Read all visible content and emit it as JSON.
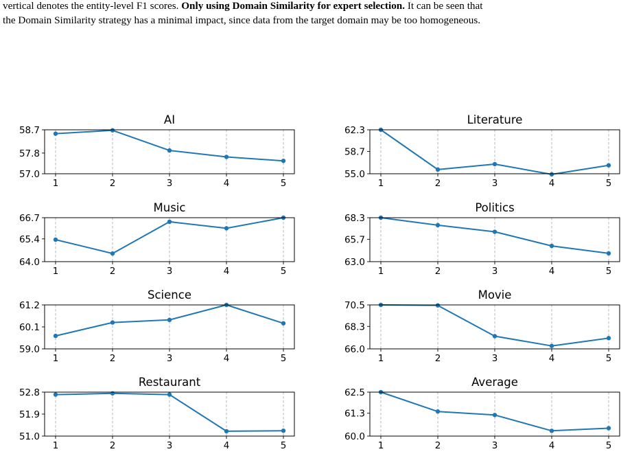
{
  "caption": {
    "line1_start": "vertical denotes the entity-level F1 scores.",
    "line1_bold": "Only using Domain Similarity for expert selection.",
    "line1_end": "It can be seen that",
    "line2": "the Domain Similarity strategy has a minimal impact, since data from the target domain may be too homogeneous."
  },
  "colors": {
    "line": "#1f77b4",
    "grid": "#b0b0b0",
    "axes": "#000000"
  },
  "chart_data": [
    {
      "type": "line",
      "title": "AI",
      "x": [
        1,
        2,
        3,
        4,
        5
      ],
      "values": [
        58.55,
        58.68,
        57.9,
        57.65,
        57.5
      ],
      "yticks": [
        "57.0",
        "57.8",
        "58.7"
      ],
      "ylim": [
        57.0,
        58.7
      ],
      "grid_x": true
    },
    {
      "type": "line",
      "title": "Literature",
      "x": [
        1,
        2,
        3,
        4,
        5
      ],
      "values": [
        62.3,
        55.7,
        56.6,
        54.9,
        56.4
      ],
      "yticks": [
        "55.0",
        "58.7",
        "62.3"
      ],
      "ylim": [
        55.0,
        62.3
      ],
      "grid_x": true
    },
    {
      "type": "line",
      "title": "Music",
      "x": [
        1,
        2,
        3,
        4,
        5
      ],
      "values": [
        65.35,
        64.5,
        66.45,
        66.05,
        66.7
      ],
      "yticks": [
        "64.0",
        "65.4",
        "66.7"
      ],
      "ylim": [
        64.0,
        66.7
      ],
      "grid_x": true
    },
    {
      "type": "line",
      "title": "Politics",
      "x": [
        1,
        2,
        3,
        4,
        5
      ],
      "values": [
        68.3,
        67.4,
        66.6,
        64.9,
        64.0
      ],
      "yticks": [
        "63.0",
        "65.7",
        "68.3"
      ],
      "ylim": [
        63.0,
        68.3
      ],
      "grid_x": true
    },
    {
      "type": "line",
      "title": "Science",
      "x": [
        1,
        2,
        3,
        4,
        5
      ],
      "values": [
        59.65,
        60.32,
        60.45,
        61.2,
        60.28
      ],
      "yticks": [
        "59.0",
        "60.1",
        "61.2"
      ],
      "ylim": [
        59.0,
        61.2
      ],
      "grid_x": true
    },
    {
      "type": "line",
      "title": "Movie",
      "x": [
        1,
        2,
        3,
        4,
        5
      ],
      "values": [
        70.5,
        70.45,
        67.3,
        66.3,
        67.1
      ],
      "yticks": [
        "66.0",
        "68.3",
        "70.5"
      ],
      "ylim": [
        66.0,
        70.5
      ],
      "grid_x": true
    },
    {
      "type": "line",
      "title": "Restaurant",
      "x": [
        1,
        2,
        3,
        4,
        5
      ],
      "values": [
        52.7,
        52.75,
        52.7,
        51.2,
        51.22
      ],
      "yticks": [
        "51.0",
        "51.9",
        "52.8"
      ],
      "ylim": [
        51.0,
        52.8
      ],
      "grid_x": true
    },
    {
      "type": "line",
      "title": "Average",
      "x": [
        1,
        2,
        3,
        4,
        5
      ],
      "values": [
        62.5,
        61.4,
        61.2,
        60.3,
        60.45
      ],
      "yticks": [
        "60.0",
        "61.3",
        "62.5"
      ],
      "ylim": [
        60.0,
        62.5
      ],
      "grid_x": true
    }
  ]
}
